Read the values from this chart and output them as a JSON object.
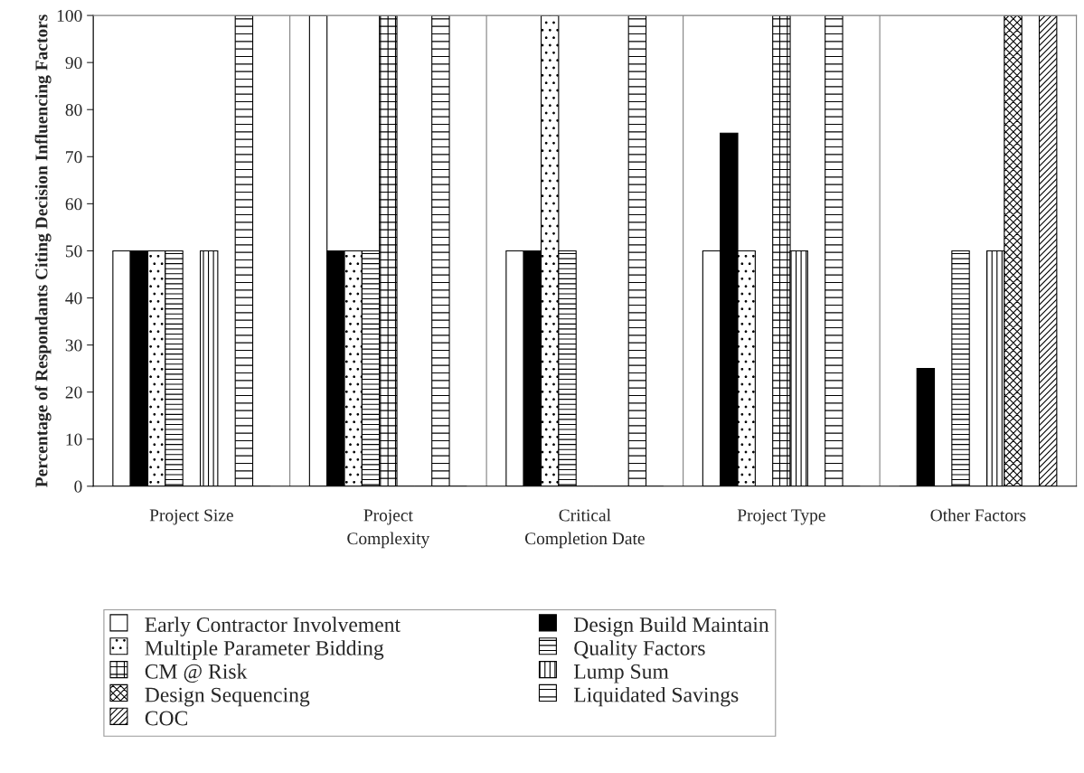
{
  "chart_data": {
    "type": "bar",
    "ylabel": "Percentage of Respondants Citing Decision Influencing Factors",
    "categories": [
      "Project Size",
      "Project\nComplexity",
      "Critical\nCompletion Date",
      "Project Type",
      "Other Factors"
    ],
    "ylim": [
      0,
      100
    ],
    "yticks": [
      0,
      10,
      20,
      30,
      40,
      50,
      60,
      70,
      80,
      90,
      100
    ],
    "grid": "x",
    "legend": "bottom",
    "series": [
      {
        "name": "Early Contractor Involvement",
        "color": "#ffffff",
        "values": [
          50,
          100,
          50,
          50,
          0
        ]
      },
      {
        "name": "Design Build Maintain",
        "color": "#000000",
        "values": [
          50,
          50,
          50,
          75,
          25
        ]
      },
      {
        "name": "Multiple Parameter Bidding",
        "color": "#ffffff",
        "values": [
          50,
          50,
          100,
          50,
          0
        ]
      },
      {
        "name": "Quality Factors",
        "color": "#ffffff",
        "values": [
          50,
          50,
          50,
          0,
          50
        ]
      },
      {
        "name": "CM @ Risk",
        "color": "#ffffff",
        "values": [
          0,
          100,
          0,
          100,
          0
        ]
      },
      {
        "name": "Lump Sum",
        "color": "#ffffff",
        "values": [
          50,
          0,
          0,
          50,
          50
        ]
      },
      {
        "name": "Design Sequencing",
        "color": "#ffffff",
        "values": [
          0,
          0,
          0,
          0,
          100
        ]
      },
      {
        "name": "Liquidated Savings",
        "color": "#ffffff",
        "values": [
          100,
          100,
          100,
          100,
          0
        ]
      },
      {
        "name": "COC",
        "color": "#ffffff",
        "values": [
          0,
          0,
          0,
          0,
          100
        ]
      }
    ]
  }
}
